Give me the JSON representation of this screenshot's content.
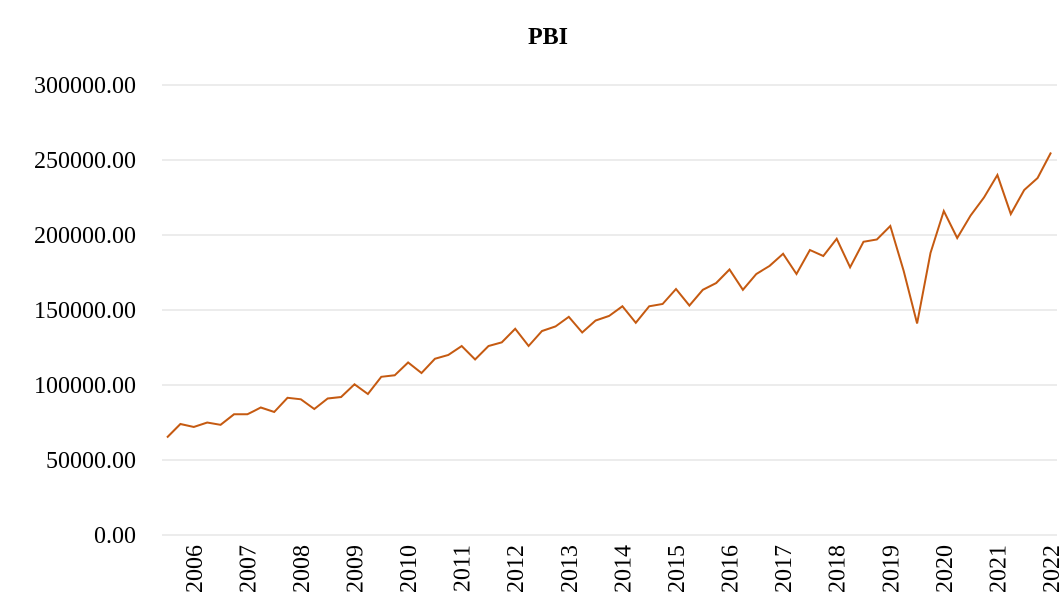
{
  "chart_data": {
    "type": "line",
    "title": "PBI",
    "categories": [
      null,
      null,
      "2006",
      null,
      null,
      null,
      "2007",
      null,
      null,
      null,
      "2008",
      null,
      null,
      null,
      "2009",
      null,
      null,
      null,
      "2010",
      null,
      null,
      null,
      "2011",
      null,
      null,
      null,
      "2012",
      null,
      null,
      null,
      "2013",
      null,
      null,
      null,
      "2014",
      null,
      null,
      null,
      "2015",
      null,
      null,
      null,
      "2016",
      null,
      null,
      null,
      "2017",
      null,
      null,
      null,
      "2018",
      null,
      null,
      null,
      "2019",
      null,
      null,
      null,
      "2020",
      null,
      null,
      null,
      "2021",
      null,
      null,
      null,
      "2022"
    ],
    "series": [
      {
        "color": "#c55a11",
        "values": [
          65000,
          74000,
          72000,
          75000,
          73500,
          80500,
          80500,
          85000,
          82000,
          91500,
          90500,
          84000,
          91000,
          92000,
          100500,
          94000,
          105500,
          106500,
          115000,
          108000,
          117500,
          120000,
          126000,
          117000,
          126000,
          128500,
          137500,
          126000,
          136000,
          139000,
          145500,
          135000,
          143000,
          146000,
          152500,
          141500,
          152500,
          154000,
          164000,
          153000,
          163500,
          168000,
          177000,
          163500,
          174000,
          179500,
          187500,
          174000,
          190000,
          186000,
          197500,
          178500,
          195500,
          197000,
          206000,
          176000,
          141000,
          188000,
          216000,
          198000,
          213000,
          225000,
          240000,
          214000,
          230000,
          238000,
          255000
        ]
      }
    ],
    "ylim": [
      0,
      300000
    ],
    "yticks": [
      {
        "value": 0,
        "label": "0.00"
      },
      {
        "value": 50000,
        "label": "50000.00"
      },
      {
        "value": 100000,
        "label": "100000.00"
      },
      {
        "value": 150000,
        "label": "150000.00"
      },
      {
        "value": 200000,
        "label": "200000.00"
      },
      {
        "value": 250000,
        "label": "250000.00"
      },
      {
        "value": 300000,
        "label": "300000.00"
      }
    ],
    "grid": true
  }
}
